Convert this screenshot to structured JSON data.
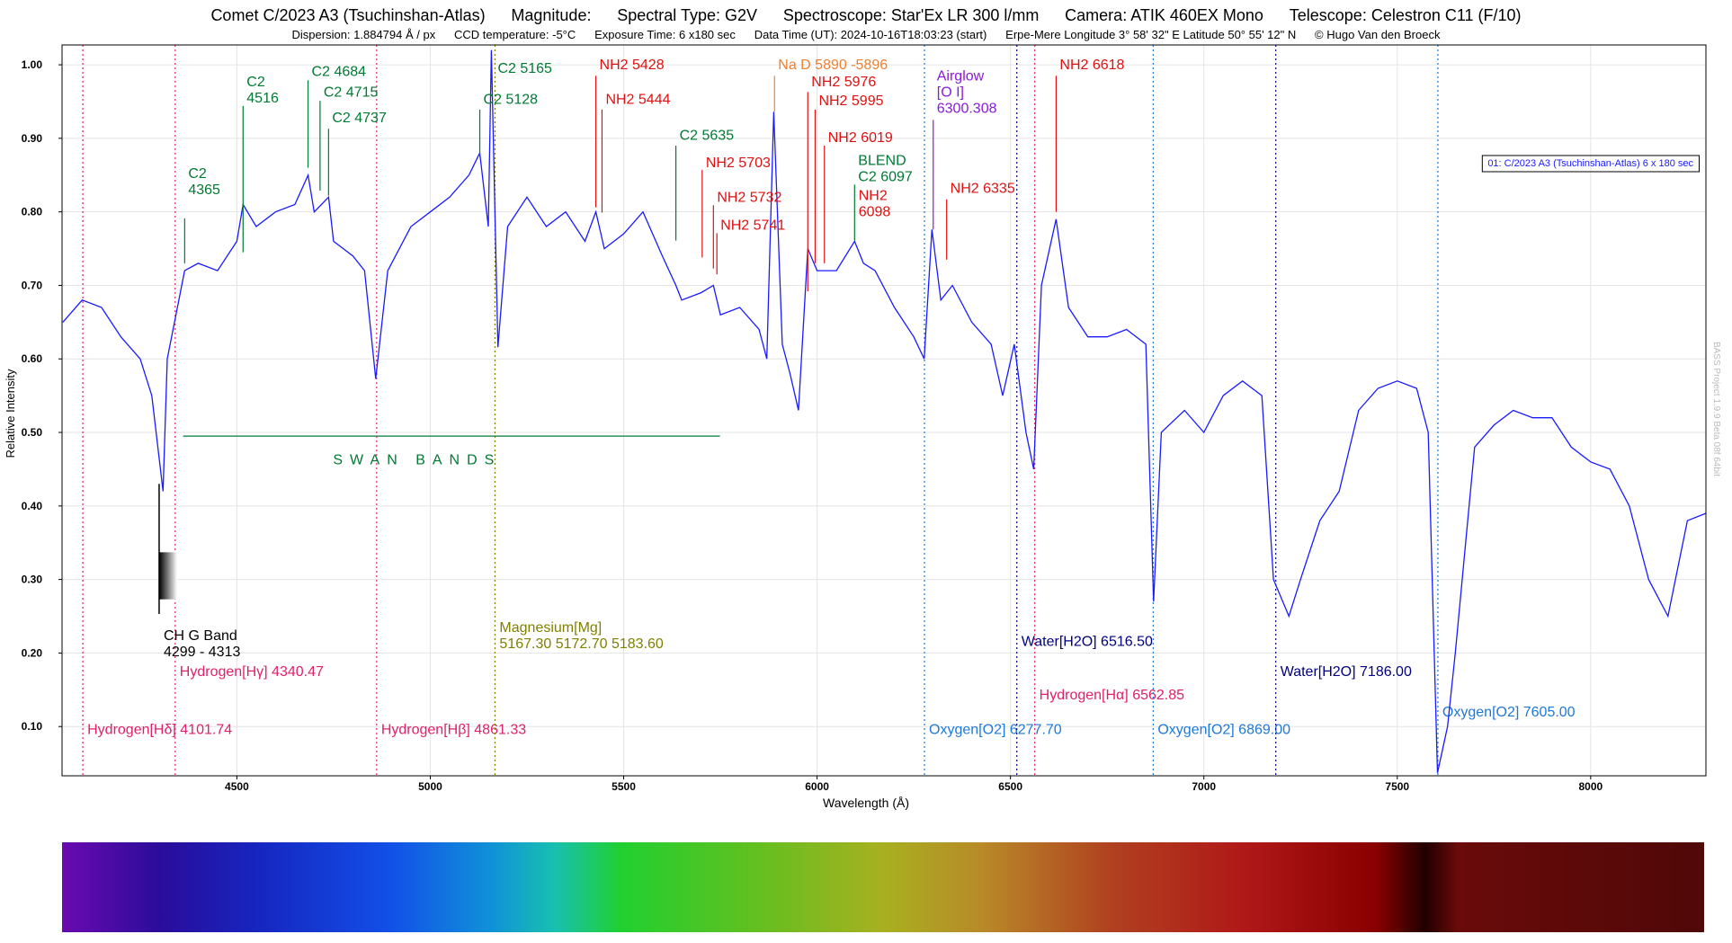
{
  "chart_data": {
    "type": "line",
    "title_parts": [
      "Comet C/2023 A3 (Tsuchinshan-Atlas)",
      "Magnitude:",
      "Spectral Type:  G2V",
      "Spectroscope:   Star'Ex LR 300 l/mm",
      "Camera: ATIK 460EX Mono",
      "Telescope: Celestron C11 (F/10)"
    ],
    "subtitle_parts": [
      "Dispersion: 1.884794 Å / px",
      "CCD temperature: -5°C",
      "Exposure Time: 6 x180 sec",
      "Data Time (UT): 2024-10-16T18:03:23 (start)",
      "Erpe-Mere Longitude 3° 58' 32\" E  Latitude  50° 55' 12\" N",
      "© Hugo Van den Broeck"
    ],
    "xlabel": "Wavelength (Å)",
    "ylabel": "Relative Intensity",
    "watermark": "BASS Project 1.9.9 Beta 08f  64bit",
    "legend": "upper right",
    "grid": true,
    "xlim": [
      4048,
      8298
    ],
    "ylim": [
      0.033,
      1.027
    ],
    "xticks": [
      4500,
      5000,
      5500,
      6000,
      6500,
      7000,
      7500,
      8000
    ],
    "yticks": [
      {
        "value": 0.1,
        "label": "0.10"
      },
      {
        "value": 0.2,
        "label": "0.20"
      },
      {
        "value": 0.3,
        "label": "0.30"
      },
      {
        "value": 0.4,
        "label": "0.40"
      },
      {
        "value": 0.5,
        "label": "0.50"
      },
      {
        "value": 0.6,
        "label": "0.60"
      },
      {
        "value": 0.7,
        "label": "0.70"
      },
      {
        "value": 0.8,
        "label": "0.80"
      },
      {
        "value": 0.9,
        "label": "0.90"
      },
      {
        "value": 1.0,
        "label": "1.00"
      }
    ],
    "x": [
      4050,
      4100,
      4150,
      4200,
      4250,
      4280,
      4309,
      4320,
      4350,
      4365,
      4400,
      4450,
      4500,
      4516,
      4550,
      4600,
      4650,
      4684,
      4700,
      4737,
      4750,
      4800,
      4830,
      4859,
      4890,
      4950,
      5000,
      5050,
      5100,
      5128,
      5150,
      5158,
      5175,
      5200,
      5250,
      5300,
      5350,
      5400,
      5428,
      5450,
      5500,
      5550,
      5600,
      5635,
      5650,
      5700,
      5732,
      5750,
      5800,
      5850,
      5870,
      5888,
      5910,
      5930,
      5952,
      5976,
      6000,
      6050,
      6097,
      6120,
      6150,
      6200,
      6250,
      6277,
      6297,
      6320,
      6350,
      6400,
      6450,
      6480,
      6510,
      6540,
      6560,
      6580,
      6618,
      6650,
      6700,
      6750,
      6800,
      6850,
      6870,
      6890,
      6950,
      7000,
      7050,
      7100,
      7150,
      7180,
      7220,
      7250,
      7300,
      7350,
      7400,
      7450,
      7500,
      7550,
      7580,
      7604,
      7630,
      7650,
      7700,
      7750,
      7800,
      7850,
      7900,
      7950,
      8000,
      8050,
      8100,
      8150,
      8200,
      8250,
      8298
    ],
    "series": [
      {
        "name": "01: C/2023 A3 (Tsuchinshan-Atlas) 6 x 180 sec",
        "color": "#1a1aff",
        "values": [
          0.65,
          0.68,
          0.67,
          0.63,
          0.6,
          0.55,
          0.42,
          0.6,
          0.68,
          0.72,
          0.73,
          0.72,
          0.76,
          0.81,
          0.78,
          0.8,
          0.81,
          0.85,
          0.8,
          0.82,
          0.76,
          0.74,
          0.72,
          0.573,
          0.72,
          0.78,
          0.8,
          0.82,
          0.85,
          0.88,
          0.78,
          1.02,
          0.616,
          0.78,
          0.82,
          0.78,
          0.8,
          0.76,
          0.8,
          0.75,
          0.77,
          0.8,
          0.74,
          0.7,
          0.68,
          0.69,
          0.7,
          0.66,
          0.67,
          0.64,
          0.6,
          0.936,
          0.62,
          0.58,
          0.53,
          0.75,
          0.72,
          0.72,
          0.76,
          0.73,
          0.72,
          0.67,
          0.63,
          0.6,
          0.776,
          0.68,
          0.7,
          0.65,
          0.62,
          0.55,
          0.62,
          0.5,
          0.45,
          0.7,
          0.79,
          0.67,
          0.63,
          0.63,
          0.64,
          0.62,
          0.27,
          0.5,
          0.53,
          0.5,
          0.55,
          0.57,
          0.55,
          0.3,
          0.25,
          0.3,
          0.38,
          0.42,
          0.53,
          0.56,
          0.57,
          0.56,
          0.5,
          0.037,
          0.1,
          0.2,
          0.48,
          0.51,
          0.53,
          0.52,
          0.52,
          0.48,
          0.46,
          0.45,
          0.4,
          0.3,
          0.25,
          0.38,
          0.39
        ]
      }
    ],
    "annotations": [
      {
        "label": [
          "C2",
          "4365"
        ],
        "x": 4365,
        "label_y": 0.852,
        "line": [
          0.73,
          0.791
        ],
        "color": "#007a33"
      },
      {
        "label": [
          "C2",
          "4516"
        ],
        "x": 4516,
        "label_y": 0.977,
        "line": [
          0.745,
          0.944
        ],
        "color": "#007a33"
      },
      {
        "label": [
          "C2 4684"
        ],
        "x": 4684,
        "label_y": 0.991,
        "line": [
          0.86,
          0.979
        ],
        "color": "#007a33"
      },
      {
        "label": [
          "C2 4715"
        ],
        "x": 4715,
        "label_y": 0.963,
        "line": [
          0.829,
          0.951
        ],
        "color": "#007a33"
      },
      {
        "label": [
          "C2 4737"
        ],
        "x": 4737,
        "label_y": 0.928,
        "line": [
          0.822,
          0.913
        ],
        "color": "#007a33"
      },
      {
        "label": [
          "C2 5128"
        ],
        "x": 5128,
        "label_y": 0.953,
        "line": [
          0.875,
          0.939
        ],
        "color": "#007a33"
      },
      {
        "label": [
          "C2 5165"
        ],
        "x": 5165,
        "label_y": 0.995,
        "color": "#007a33"
      },
      {
        "label": [
          "NH2 5428"
        ],
        "x": 5428,
        "label_y": 1.0,
        "line": [
          0.806,
          0.985
        ],
        "color": "#e01010"
      },
      {
        "label": [
          "NH2 5444"
        ],
        "x": 5444,
        "label_y": 0.953,
        "line": [
          0.799,
          0.939
        ],
        "color": "#e01010"
      },
      {
        "label": [
          "C2 5635"
        ],
        "x": 5635,
        "label_y": 0.904,
        "line": [
          0.761,
          0.89
        ],
        "color": "#007a33"
      },
      {
        "label": [
          "NH2 5703"
        ],
        "x": 5703,
        "label_y": 0.867,
        "line": [
          0.738,
          0.857
        ],
        "color": "#e01010"
      },
      {
        "label": [
          "NH2 5732"
        ],
        "x": 5732,
        "label_y": 0.82,
        "line": [
          0.723,
          0.809
        ],
        "color": "#e01010"
      },
      {
        "label": [
          "NH2  5741"
        ],
        "x": 5741,
        "label_y": 0.782,
        "line": [
          0.715,
          0.771
        ],
        "color": "#e01010"
      },
      {
        "label": [
          "Na D 5890 -5896"
        ],
        "x": 5890,
        "label_y": 1.0,
        "line": [
          0.936,
          0.985
        ],
        "color": "#f08030"
      },
      {
        "label": [
          "NH2 5976"
        ],
        "x": 5976,
        "label_y": 0.977,
        "line": [
          0.692,
          0.963
        ],
        "color": "#e01010"
      },
      {
        "label": [
          "NH2 5995"
        ],
        "x": 5995,
        "label_y": 0.951,
        "line": [
          0.73,
          0.939
        ],
        "color": "#e01010"
      },
      {
        "label": [
          "NH2 6019"
        ],
        "x": 6019,
        "label_y": 0.901,
        "line": [
          0.73,
          0.89
        ],
        "color": "#e01010"
      },
      {
        "label": [
          "BLEND",
          "C2  6097"
        ],
        "x": 6097,
        "label_y": 0.87,
        "line": [
          0.761,
          0.837
        ],
        "color": "#007a33"
      },
      {
        "label": [
          "NH2",
          "6098"
        ],
        "x": 6098,
        "label_y": 0.822,
        "color": "#e01010"
      },
      {
        "label": [
          "Airglow",
          "[O I]",
          "6300.308"
        ],
        "x": 6300.308,
        "label_y": 0.985,
        "line": [
          0.776,
          0.925
        ],
        "color": "#8a1ad8"
      },
      {
        "label": [
          "NH2 6335"
        ],
        "x": 6335,
        "label_y": 0.832,
        "line": [
          0.735,
          0.817
        ],
        "color": "#e01010"
      },
      {
        "label": [
          "NH2 6618"
        ],
        "x": 6618,
        "label_y": 1.0,
        "line": [
          0.8,
          0.985
        ],
        "color": "#e01010"
      }
    ],
    "reference_lines": [
      {
        "label": [
          "Hydrogen[Hδ] 4101.74"
        ],
        "x": 4101.74,
        "label_y": 0.096,
        "color": "#e0206a"
      },
      {
        "label": [
          "Hydrogen[Hγ] 4340.47"
        ],
        "x": 4340.47,
        "label_y": 0.175,
        "color": "#e0206a"
      },
      {
        "label": [
          "Hydrogen[Hβ] 4861.33"
        ],
        "x": 4861.33,
        "label_y": 0.096,
        "color": "#e0206a"
      },
      {
        "label": [
          "Magnesium[Mg]",
          "5167.30 5172.70 5183.60"
        ],
        "x": 5167.3,
        "label_y": 0.235,
        "color": "#808000"
      },
      {
        "label": [
          "Oxygen[O2] 6277.70"
        ],
        "x": 6277.7,
        "label_y": 0.096,
        "color": "#1e78d8"
      },
      {
        "label": [
          "Water[H2O] 6516.50"
        ],
        "x": 6516.5,
        "label_y": 0.216,
        "color": "#000080"
      },
      {
        "label": [
          "Hydrogen[Hα] 6562.85"
        ],
        "x": 6562.85,
        "label_y": 0.143,
        "color": "#e0206a"
      },
      {
        "label": [
          "Oxygen[O2] 6869.00"
        ],
        "x": 6869.0,
        "label_y": 0.096,
        "color": "#1e78d8"
      },
      {
        "label": [
          "Water[H2O] 7186.00"
        ],
        "x": 7186.0,
        "label_y": 0.175,
        "color": "#000080"
      },
      {
        "label": [
          "Oxygen[O2] 7605.00"
        ],
        "x": 7605.0,
        "label_y": 0.12,
        "color": "#1e78d8"
      }
    ],
    "swan_bands": {
      "label": "SWAN BANDS",
      "x": [
        4361,
        5749
      ],
      "y": 0.495,
      "label_x": 4966,
      "label_y": 0.463,
      "color": "#007a33"
    },
    "g_band": {
      "label": [
        "CH  G Band",
        "4299 - 4313"
      ],
      "x": 4299,
      "line": [
        0.253,
        0.43
      ],
      "band_y": [
        0.273,
        0.337
      ],
      "label_y": 0.224,
      "color": "#000000"
    }
  }
}
